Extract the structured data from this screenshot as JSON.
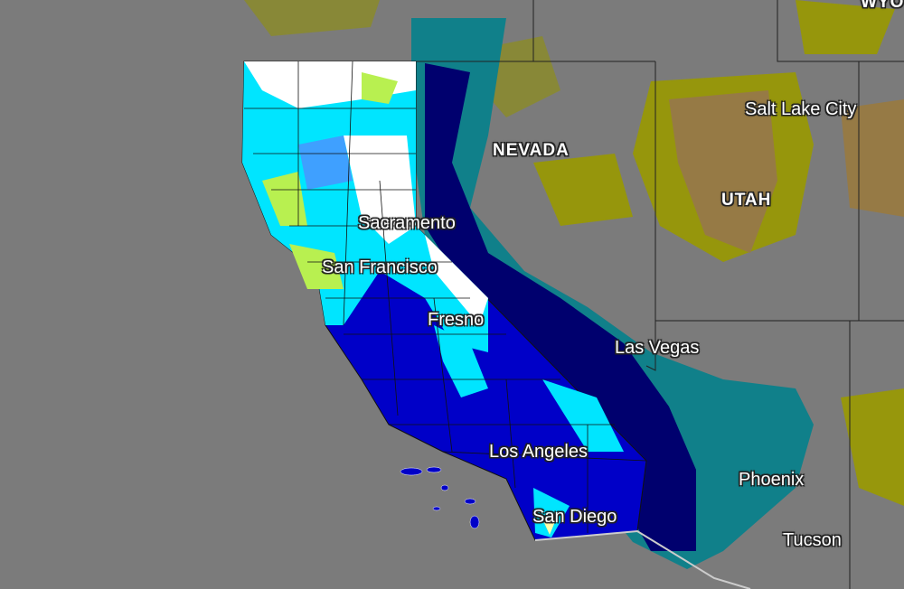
{
  "map": {
    "state_labels": [
      "WYO",
      "NEVADA",
      "UTAH"
    ],
    "city_labels": [
      "Salt Lake City",
      "Sacramento",
      "San Francisco",
      "Fresno",
      "Las Vegas",
      "Los Angeles",
      "Phoenix",
      "San Diego",
      "Tucson"
    ],
    "colors": {
      "background": "#7b7b7b",
      "white": "#ffffff",
      "light_cyan": "#00e5ff",
      "yellow_green": "#b8f050",
      "sky_blue": "#3fa0ff",
      "blue": "#0000c8",
      "navy": "#00006e",
      "teal": "#10808a",
      "olive": "#9a9a00",
      "brown": "#9a7a40"
    }
  }
}
